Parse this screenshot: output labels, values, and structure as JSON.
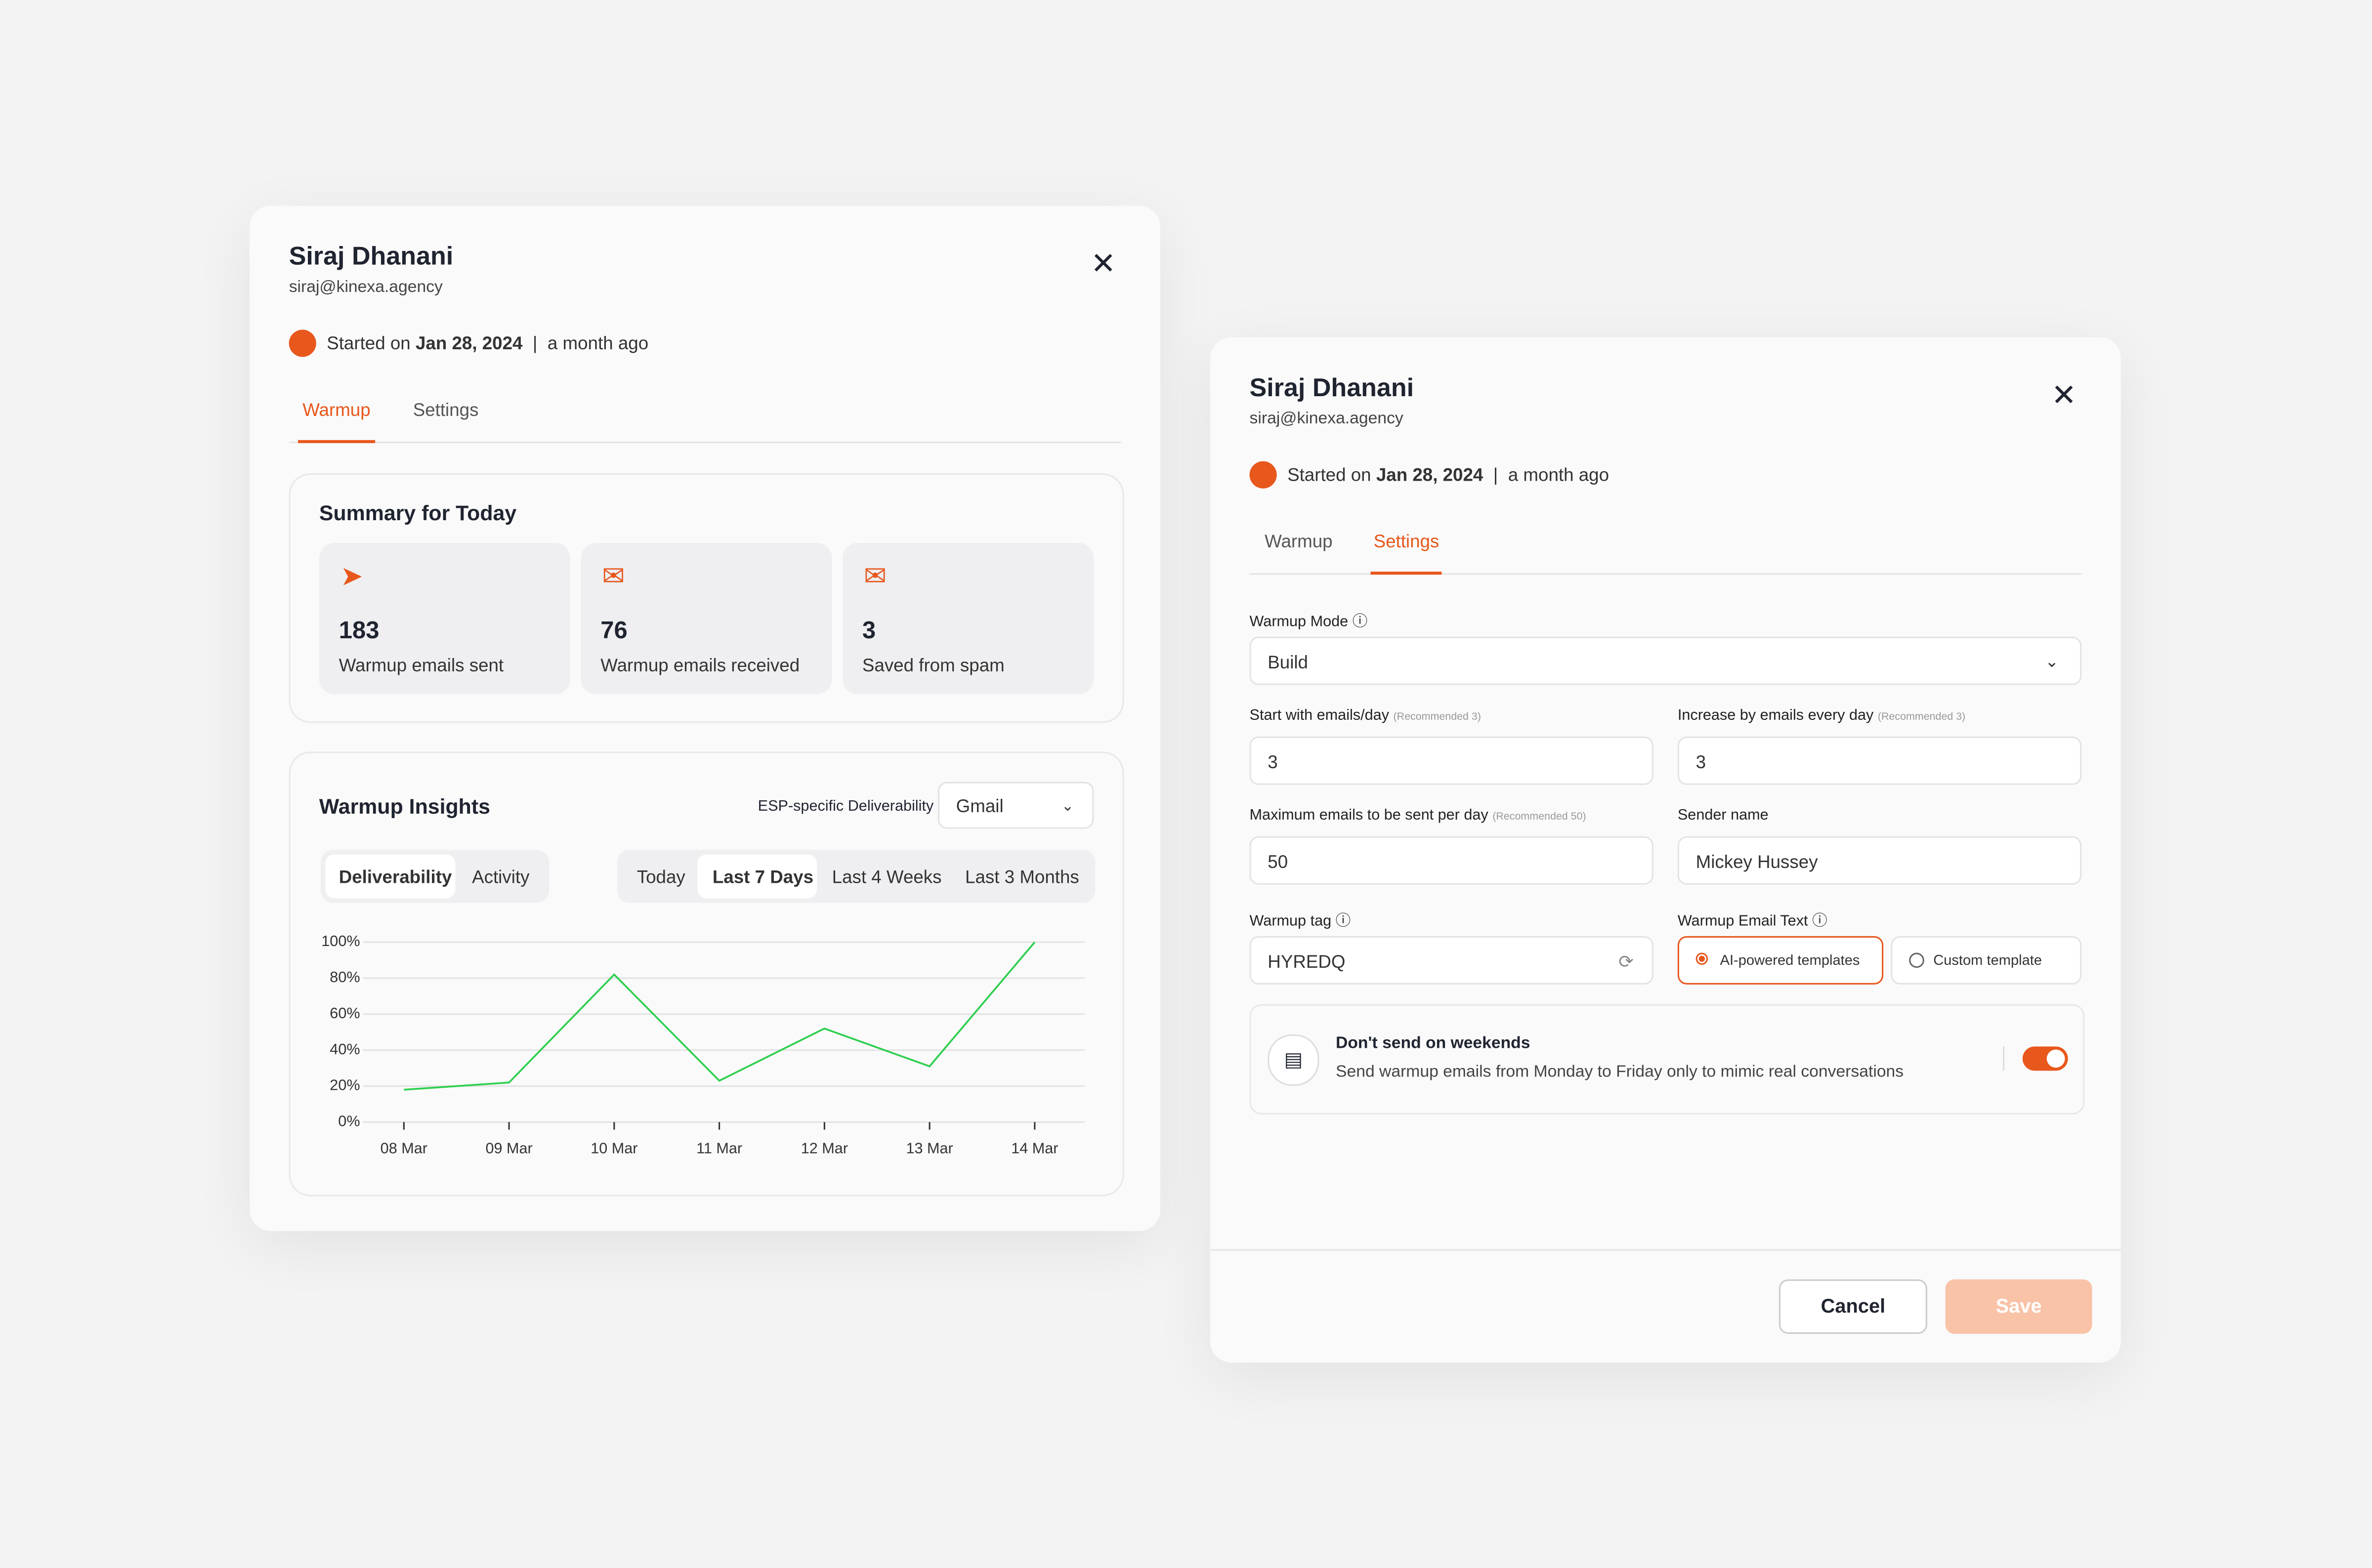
{
  "left_panel": {
    "name": "Siraj Dhanani",
    "email": "siraj@kinexa.agency",
    "started_prefix": "Started on",
    "start_date": "Jan 28, 2024",
    "separator": "|",
    "relative": "a month ago",
    "tabs": [
      "Warmup",
      "Settings"
    ],
    "summary_title": "Summary for Today",
    "stats": [
      {
        "value": 183,
        "label": "Warmup emails sent"
      },
      {
        "value": 76,
        "label": "Warmup emails received"
      },
      {
        "value": 3,
        "label": "Saved from spam"
      }
    ],
    "insights_title": "Warmup Insights",
    "esp_label": "ESP-specific Deliverability",
    "esp_value": "Gmail",
    "view_tabs": [
      "Deliverability",
      "Activity"
    ],
    "range_tabs": [
      "Today",
      "Last 7 Days",
      "Last 4 Weeks",
      "Last 3 Months"
    ]
  },
  "chart_data": {
    "type": "line",
    "categories": [
      "08 Mar",
      "09 Mar",
      "10 Mar",
      "11 Mar",
      "12 Mar",
      "13 Mar",
      "14 Mar"
    ],
    "values": [
      18,
      22,
      82,
      23,
      52,
      31,
      100
    ],
    "color": "#2fcf4f",
    "ylim": [
      0,
      100
    ],
    "yticks": [
      {
        "value": 0,
        "label": "0%"
      },
      {
        "value": 20,
        "label": "20%"
      },
      {
        "value": 40,
        "label": "40%"
      },
      {
        "value": 60,
        "label": "60%"
      },
      {
        "value": 80,
        "label": "80%"
      },
      {
        "value": 100,
        "label": "100%"
      }
    ],
    "grid": true
  },
  "right_panel": {
    "name": "Siraj Dhanani",
    "email": "siraj@kinexa.agency",
    "started_prefix": "Started on",
    "start_date": "Jan 28, 2024",
    "separator": "|",
    "relative": "a month ago",
    "tabs": [
      "Warmup",
      "Settings"
    ],
    "mode_label": "Warmup Mode",
    "mode_value": "Build",
    "start_label": "Start with emails/day",
    "start_hint": "(Recommended 3)",
    "start_value": 3,
    "increase_label": "Increase by emails every day",
    "increase_hint": "(Recommended 3)",
    "increase_value": 3,
    "max_label": "Maximum emails to be sent per day",
    "max_hint": "(Recommended 50)",
    "max_value": 50,
    "sender_label": "Sender name",
    "sender_value": "Mickey Hussey",
    "tag_label": "Warmup tag",
    "tag_value": "HYREDQ",
    "email_text_label": "Warmup Email Text",
    "options": [
      "AI-powered templates",
      "Custom template"
    ],
    "weekend_title": "Don't send on weekends",
    "weekend_desc": "Send warmup emails from Monday to Friday only to mimic real conversations",
    "cancel": "Cancel",
    "save": "Save"
  }
}
